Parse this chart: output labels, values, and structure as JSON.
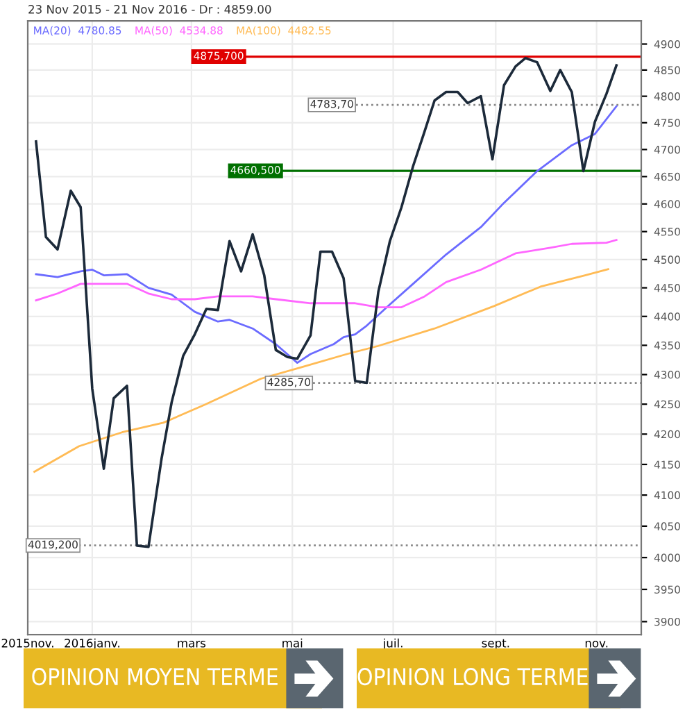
{
  "chart_data": {
    "type": "line",
    "title": "23 Nov 2015 - 21 Nov 2016 - Dr : 4859.00",
    "x": [
      "2015-11-28",
      "2015-12-04",
      "2015-12-11",
      "2015-12-19",
      "2015-12-25",
      "2016-01-01",
      "2016-01-08",
      "2016-01-14",
      "2016-01-22",
      "2016-01-28",
      "2016-02-04",
      "2016-02-12",
      "2016-02-18",
      "2016-02-25",
      "2016-03-03",
      "2016-03-10",
      "2016-03-17",
      "2016-03-24",
      "2016-03-31",
      "2016-04-07",
      "2016-04-14",
      "2016-04-21",
      "2016-04-28",
      "2016-05-04",
      "2016-05-12",
      "2016-05-18",
      "2016-05-25",
      "2016-06-01",
      "2016-06-08",
      "2016-06-15",
      "2016-06-22",
      "2016-06-29",
      "2016-07-06",
      "2016-07-13",
      "2016-07-20",
      "2016-07-26",
      "2016-08-02",
      "2016-08-09",
      "2016-08-15",
      "2016-08-23",
      "2016-08-30",
      "2016-09-06",
      "2016-09-13",
      "2016-09-19",
      "2016-09-26",
      "2016-10-04",
      "2016-10-10",
      "2016-10-17",
      "2016-10-24",
      "2016-10-31",
      "2016-11-07",
      "2016-11-13"
    ],
    "series": [
      {
        "color": "#1c2a3a",
        "values": [
          4715,
          4540,
          4518,
          4624,
          4594,
          4276,
          4143,
          4260,
          4281,
          4019,
          4017,
          4161,
          4253,
          4332,
          4369,
          4413,
          4411,
          4533,
          4479,
          4545,
          4472,
          4342,
          4330,
          4327,
          4367,
          4514,
          4514,
          4467,
          4289,
          4286,
          4443,
          4533,
          4594,
          4669,
          4734,
          4792,
          4808,
          4808,
          4787,
          4800,
          4682,
          4821,
          4857,
          4873,
          4865,
          4810,
          4850,
          4808,
          4660,
          4752,
          4805,
          4859
        ]
      },
      {
        "name": "MA(20)  4780.85",
        "color": "#6b6bff",
        "x": [
          "2015-11-28",
          "2015-12-11",
          "2015-12-25",
          "2016-01-01",
          "2016-01-08",
          "2016-01-22",
          "2016-02-04",
          "2016-02-18",
          "2016-03-03",
          "2016-03-17",
          "2016-03-24",
          "2016-04-07",
          "2016-04-21",
          "2016-05-04",
          "2016-05-12",
          "2016-05-26",
          "2016-06-01",
          "2016-06-08",
          "2016-06-15",
          "2016-06-29",
          "2016-07-13",
          "2016-08-02",
          "2016-08-23",
          "2016-09-06",
          "2016-09-26",
          "2016-10-17",
          "2016-10-31",
          "2016-11-13"
        ],
        "values": [
          4474,
          4469,
          4479,
          4482,
          4472,
          4474,
          4450,
          4438,
          4408,
          4391,
          4394,
          4379,
          4352,
          4320,
          4335,
          4352,
          4364,
          4369,
          4384,
          4421,
          4457,
          4509,
          4558,
          4602,
          4660,
          4708,
          4729,
          4781
        ]
      },
      {
        "name": "MA(50)  4534.88",
        "color": "#ff66ff",
        "x": [
          "2015-11-28",
          "2015-12-11",
          "2015-12-25",
          "2016-01-08",
          "2016-01-22",
          "2016-02-04",
          "2016-02-18",
          "2016-03-03",
          "2016-03-17",
          "2016-04-07",
          "2016-04-21",
          "2016-05-12",
          "2016-05-26",
          "2016-06-08",
          "2016-06-22",
          "2016-07-06",
          "2016-07-20",
          "2016-08-02",
          "2016-08-23",
          "2016-09-13",
          "2016-10-04",
          "2016-10-17",
          "2016-11-07",
          "2016-11-13"
        ],
        "values": [
          4428,
          4440,
          4457,
          4457,
          4457,
          4440,
          4430,
          4430,
          4435,
          4435,
          4430,
          4423,
          4423,
          4423,
          4416,
          4416,
          4435,
          4460,
          4482,
          4511,
          4521,
          4528,
          4530,
          4535
        ]
      },
      {
        "name": "MA(100)  4482.55",
        "color": "#ffbb55",
        "x": [
          "2015-11-27",
          "2015-12-24",
          "2016-01-19",
          "2016-02-13",
          "2016-03-09",
          "2016-04-12",
          "2016-05-07",
          "2016-06-03",
          "2016-06-22",
          "2016-07-26",
          "2016-08-31",
          "2016-09-28",
          "2016-10-25",
          "2016-11-08"
        ],
        "values": [
          4138,
          4180,
          4203,
          4219,
          4249,
          4293,
          4313,
          4335,
          4349,
          4379,
          4418,
          4452,
          4472,
          4483
        ]
      }
    ],
    "xlim": [
      "2015-11-23",
      "2016-11-28"
    ],
    "xticks": [
      {
        "value": "2015-11-23",
        "label": "2015nov."
      },
      {
        "value": "2016-01-01",
        "label": "2016janv."
      },
      {
        "value": "2016-03-01",
        "label": "mars"
      },
      {
        "value": "2016-05-01",
        "label": "mai"
      },
      {
        "value": "2016-07-01",
        "label": "juil."
      },
      {
        "value": "2016-09-01",
        "label": "sept."
      },
      {
        "value": "2016-11-01",
        "label": "nov."
      }
    ],
    "log": true,
    "ylim": [
      3880,
      4945
    ],
    "yticks": [
      3900,
      3950,
      4000,
      4050,
      4100,
      4150,
      4200,
      4250,
      4300,
      4350,
      4400,
      4450,
      4500,
      4550,
      4600,
      4650,
      4700,
      4750,
      4800,
      4850,
      4900
    ],
    "ref_lines": [
      {
        "axis": "y",
        "value": 4875.7,
        "label": "4875,700",
        "color": "#e00000",
        "line_style": "solid"
      },
      {
        "axis": "y",
        "value": 4783.7,
        "label": "4783,70",
        "color": "#888888",
        "line_style": "dotted"
      },
      {
        "axis": "y",
        "value": 4660.5,
        "label": "4660,500",
        "color": "#007000",
        "line_style": "solid"
      },
      {
        "axis": "y",
        "value": 4285.7,
        "label": "4285,70",
        "color": "#888888",
        "line_style": "dotted"
      },
      {
        "axis": "y",
        "value": 4019.2,
        "label": "4019,200",
        "color": "#888888",
        "line_style": "dotted"
      }
    ],
    "annotations": [
      "OPINION MOYEN TERME",
      "OPINION LONG TERME"
    ],
    "grid": true,
    "legend": "top left",
    "marker": "none",
    "line_style": "solid"
  }
}
